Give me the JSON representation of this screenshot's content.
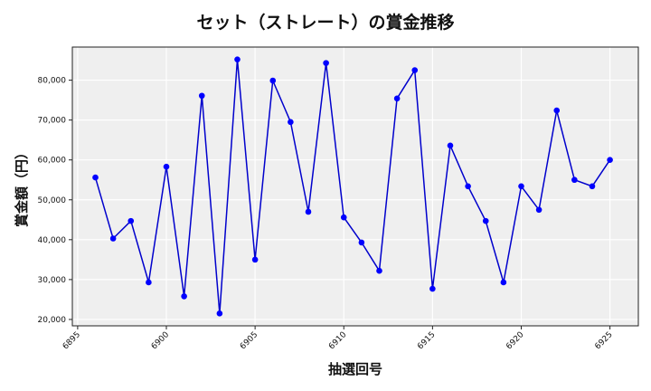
{
  "chart_data": {
    "type": "line",
    "title": "セット（ストレート）の賞金推移",
    "xlabel": "抽選回号",
    "ylabel": "賞金額（円）",
    "x": [
      6896,
      6897,
      6898,
      6899,
      6900,
      6901,
      6902,
      6903,
      6904,
      6905,
      6906,
      6907,
      6908,
      6909,
      6910,
      6911,
      6912,
      6913,
      6914,
      6915,
      6916,
      6917,
      6918,
      6919,
      6920,
      6921,
      6922,
      6923,
      6924,
      6925
    ],
    "series": [
      {
        "name": "賞金",
        "color": "#0000cc",
        "marker": "circle",
        "values": [
          55600,
          40300,
          44700,
          29300,
          58300,
          25800,
          76100,
          21500,
          85200,
          35000,
          79900,
          69500,
          47000,
          84300,
          45600,
          39300,
          32200,
          75400,
          82500,
          27700,
          63600,
          53400,
          44700,
          29300,
          53400,
          47500,
          72400,
          55000,
          53400,
          60000
        ]
      }
    ],
    "xticks": [
      6895,
      6900,
      6905,
      6910,
      6915,
      6920,
      6925
    ],
    "yticks": [
      20000,
      30000,
      40000,
      50000,
      60000,
      70000,
      80000
    ],
    "ytick_labels": [
      "20,000",
      "30,000",
      "40,000",
      "50,000",
      "60,000",
      "70,000",
      "80,000"
    ],
    "xlim": [
      6894.7,
      6926.6
    ],
    "ylim": [
      18400,
      88300
    ],
    "grid": true,
    "legend": null,
    "background": "#efefef"
  }
}
